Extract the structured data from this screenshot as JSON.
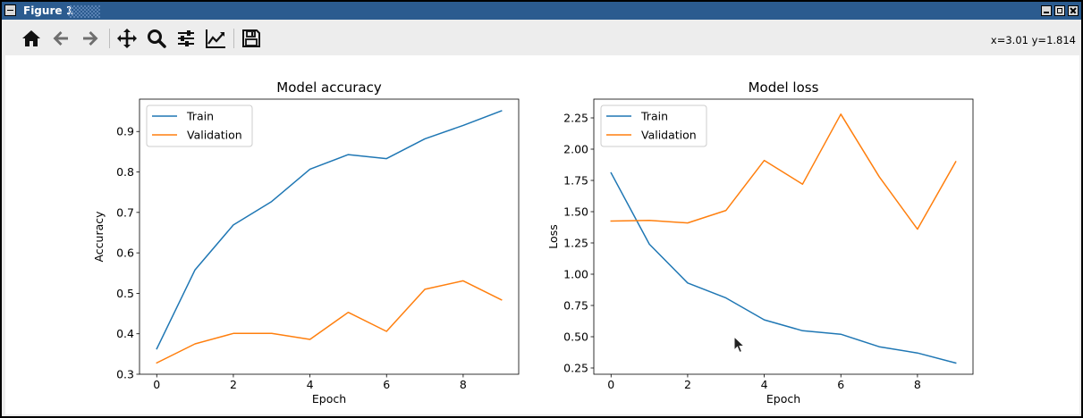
{
  "window": {
    "title": "Figure 1"
  },
  "toolbar": {
    "buttons": [
      {
        "name": "home-icon"
      },
      {
        "name": "back-arrow-icon"
      },
      {
        "name": "forward-arrow-icon"
      },
      {
        "name": "pan-icon"
      },
      {
        "name": "zoom-icon"
      },
      {
        "name": "subplots-config-icon"
      },
      {
        "name": "edit-axes-icon"
      },
      {
        "name": "save-icon"
      }
    ],
    "coords": "x=3.01 y=1.814"
  },
  "colors": {
    "train": "#1f77b4",
    "validation": "#ff7f0e"
  },
  "chart_data": [
    {
      "type": "line",
      "title": "Model accuracy",
      "xlabel": "Epoch",
      "ylabel": "Accuracy",
      "x": [
        0,
        1,
        2,
        3,
        4,
        5,
        6,
        7,
        8,
        9
      ],
      "xlim": [
        -0.45,
        9.45
      ],
      "ylim": [
        0.3,
        0.98
      ],
      "xticks": [
        0,
        2,
        4,
        6,
        8
      ],
      "yticks": [
        0.3,
        0.4,
        0.5,
        0.6,
        0.7,
        0.8,
        0.9
      ],
      "ytick_labels": [
        "0.3",
        "0.4",
        "0.5",
        "0.6",
        "0.7",
        "0.8",
        "0.9"
      ],
      "legend": "top-left",
      "series": [
        {
          "name": "Train",
          "values": [
            0.363,
            0.558,
            0.669,
            0.727,
            0.807,
            0.843,
            0.833,
            0.882,
            0.915,
            0.951
          ]
        },
        {
          "name": "Validation",
          "values": [
            0.328,
            0.375,
            0.401,
            0.401,
            0.386,
            0.453,
            0.406,
            0.51,
            0.531,
            0.484
          ]
        }
      ]
    },
    {
      "type": "line",
      "title": "Model loss",
      "xlabel": "Epoch",
      "ylabel": "Loss",
      "x": [
        0,
        1,
        2,
        3,
        4,
        5,
        6,
        7,
        8,
        9
      ],
      "xlim": [
        -0.45,
        9.45
      ],
      "ylim": [
        0.2,
        2.4
      ],
      "xticks": [
        0,
        2,
        4,
        6,
        8
      ],
      "yticks": [
        0.25,
        0.5,
        0.75,
        1.0,
        1.25,
        1.5,
        1.75,
        2.0,
        2.25
      ],
      "ytick_labels": [
        "0.25",
        "0.50",
        "0.75",
        "1.00",
        "1.25",
        "1.50",
        "1.75",
        "2.00",
        "2.25"
      ],
      "legend": "top-left",
      "series": [
        {
          "name": "Train",
          "values": [
            1.81,
            1.24,
            0.93,
            0.81,
            0.635,
            0.548,
            0.52,
            0.42,
            0.37,
            0.29
          ]
        },
        {
          "name": "Validation",
          "values": [
            1.425,
            1.43,
            1.41,
            1.51,
            1.91,
            1.72,
            2.28,
            1.78,
            1.36,
            1.9
          ]
        }
      ]
    }
  ]
}
